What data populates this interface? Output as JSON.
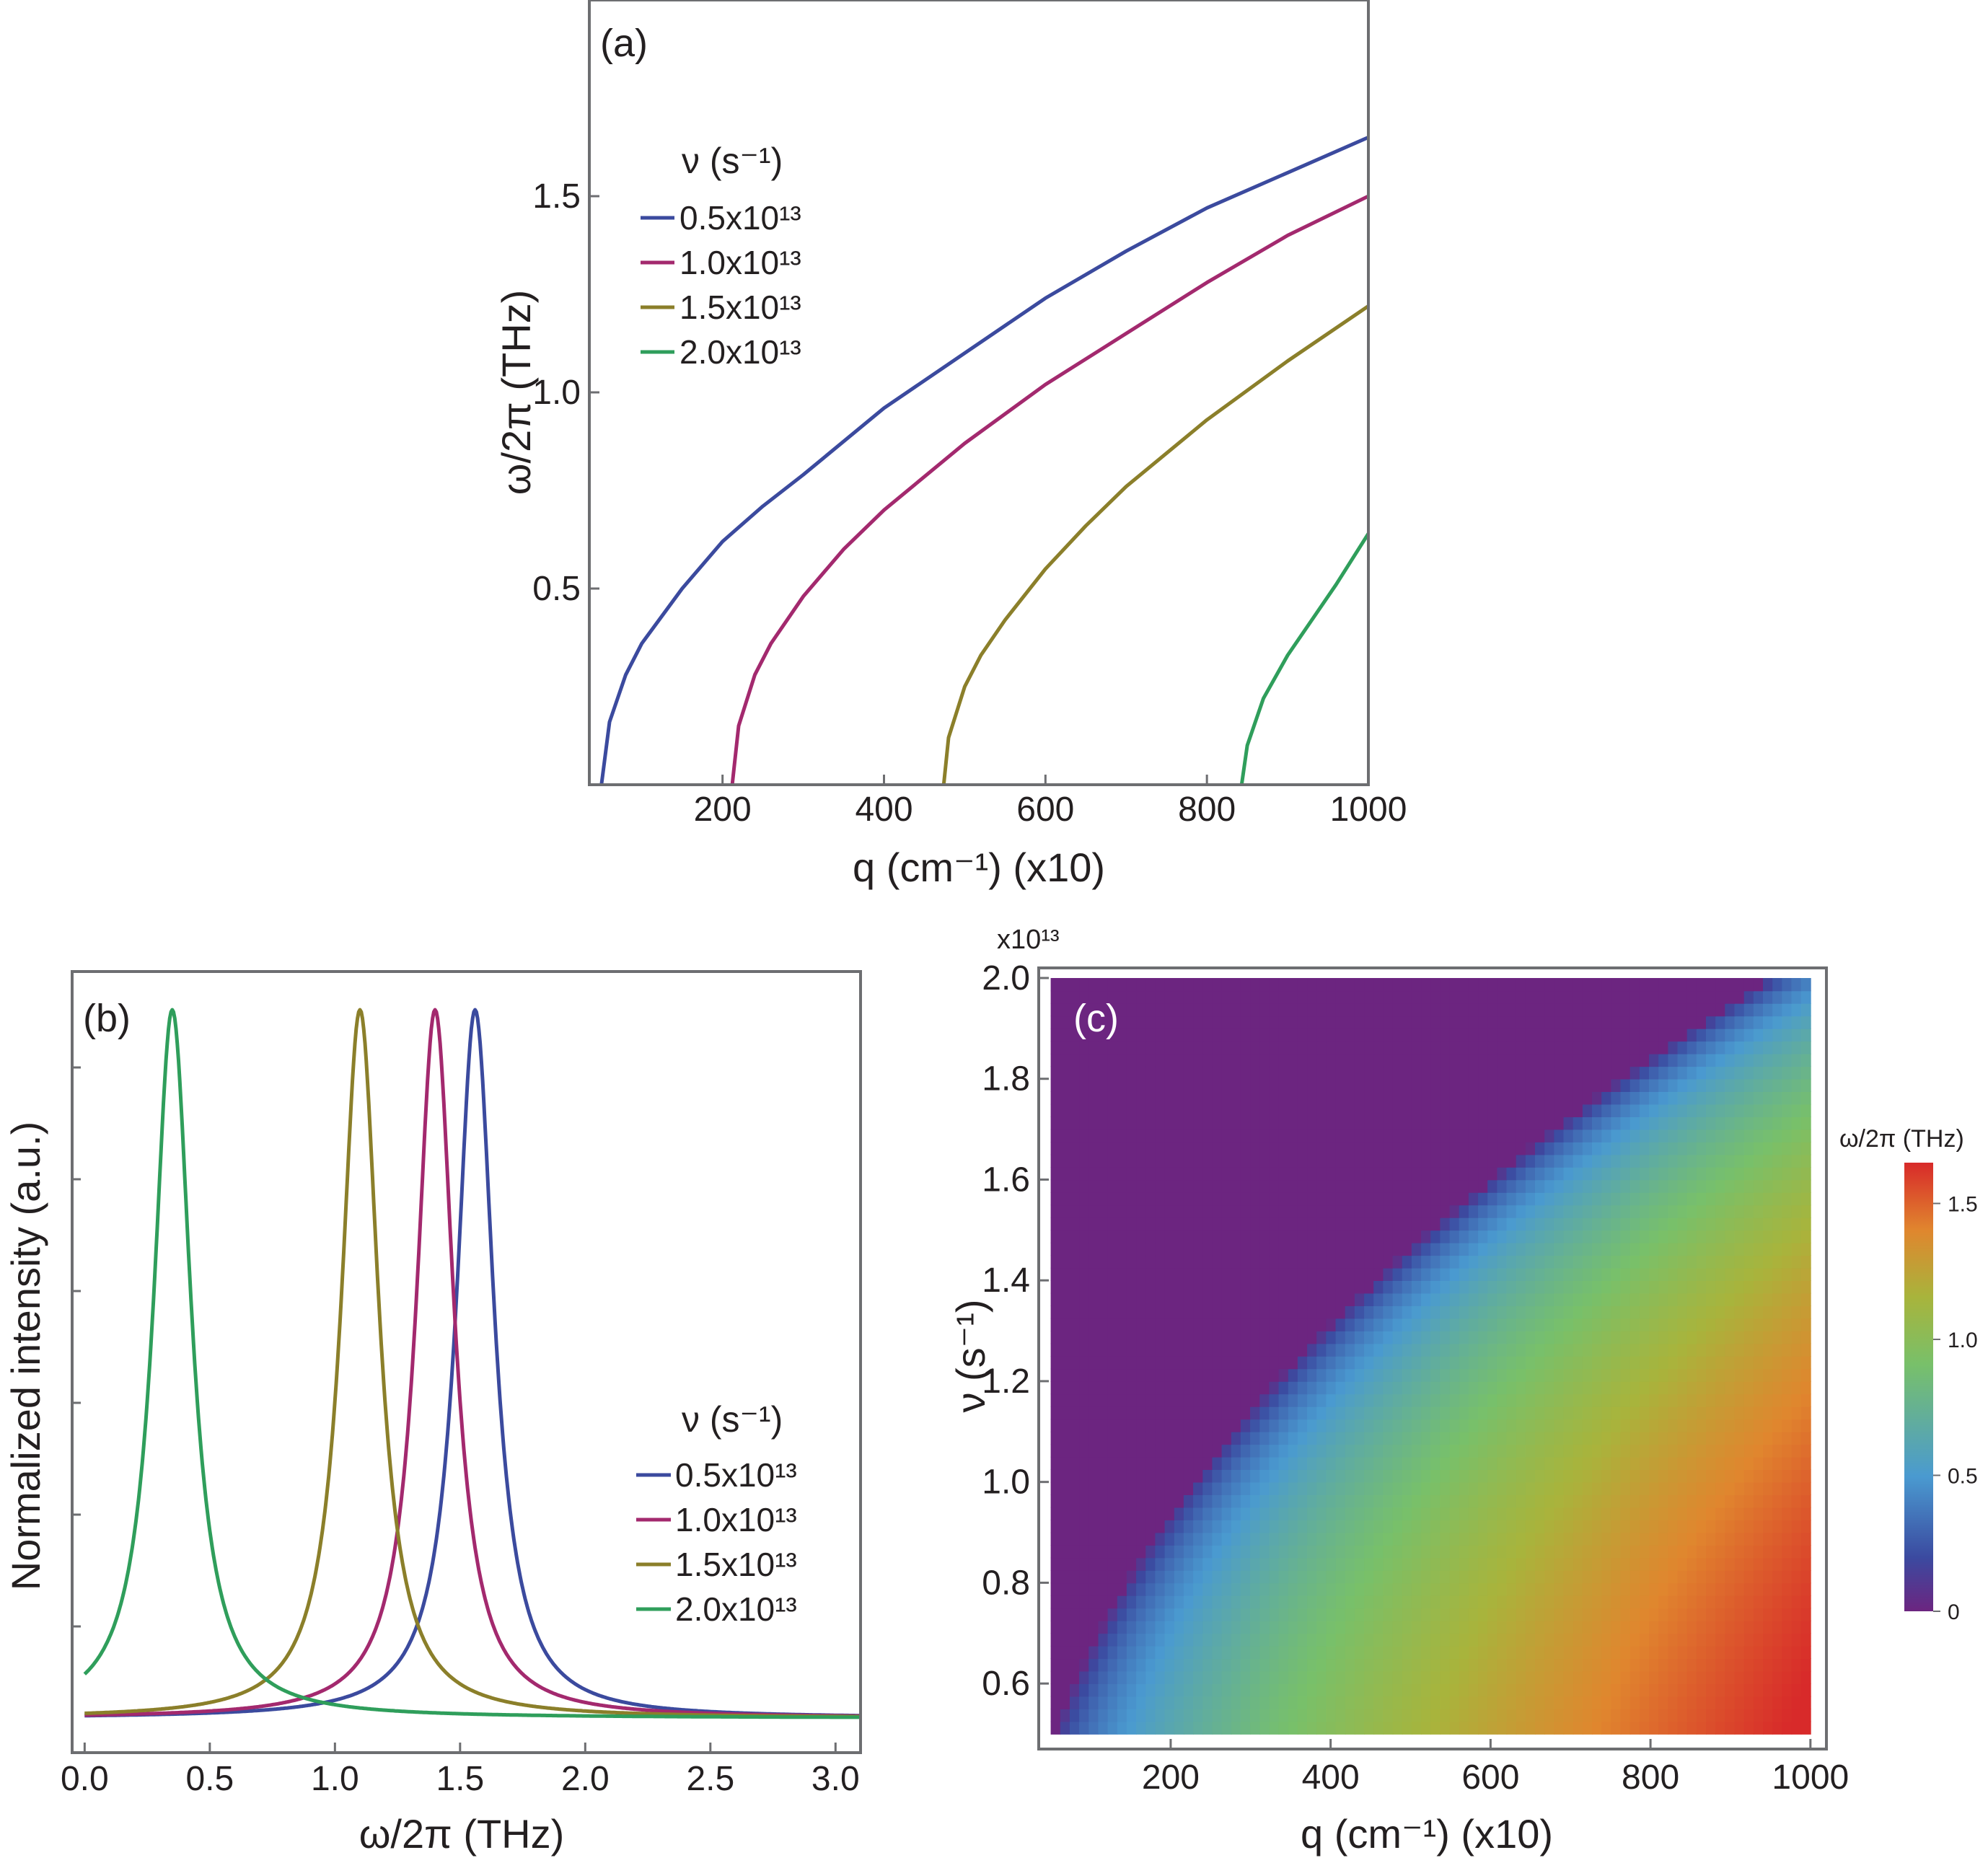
{
  "chart_data": [
    {
      "panel": "(a)",
      "type": "line",
      "xlabel": "q (cm⁻¹) (x10)",
      "ylabel": "ω/2π (THz)",
      "xlim": [
        35,
        1000
      ],
      "ylim": [
        0,
        2.0
      ],
      "xticks": [
        "200",
        "400",
        "600",
        "800",
        "1000"
      ],
      "yticks": [
        "0.5",
        "1.0",
        "1.5"
      ],
      "legend_title": "ν (s⁻¹)",
      "legend_position": "upper-left",
      "series": [
        {
          "name": "0.5x10¹³",
          "color": "#3b4a9e",
          "x": [
            50,
            60,
            80,
            100,
            150,
            200,
            250,
            300,
            400,
            500,
            600,
            700,
            800,
            900,
            1000
          ],
          "y": [
            0.0,
            0.16,
            0.28,
            0.36,
            0.5,
            0.62,
            0.71,
            0.79,
            0.96,
            1.1,
            1.24,
            1.36,
            1.47,
            1.56,
            1.65
          ]
        },
        {
          "name": "1.0x10¹³",
          "color": "#a3296e",
          "x": [
            212,
            220,
            240,
            260,
            300,
            350,
            400,
            500,
            600,
            700,
            800,
            900,
            1000
          ],
          "y": [
            0.0,
            0.15,
            0.28,
            0.36,
            0.48,
            0.6,
            0.7,
            0.87,
            1.02,
            1.15,
            1.28,
            1.4,
            1.5
          ]
        },
        {
          "name": "1.5x10¹³",
          "color": "#8b7f2a",
          "x": [
            474,
            480,
            500,
            520,
            550,
            600,
            650,
            700,
            800,
            900,
            1000
          ],
          "y": [
            0.0,
            0.12,
            0.25,
            0.33,
            0.42,
            0.55,
            0.66,
            0.76,
            0.93,
            1.08,
            1.22
          ]
        },
        {
          "name": "2.0x10¹³",
          "color": "#2f9e5b",
          "x": [
            843,
            850,
            870,
            900,
            930,
            960,
            1000
          ],
          "y": [
            0.0,
            0.1,
            0.22,
            0.33,
            0.42,
            0.51,
            0.64
          ]
        }
      ]
    },
    {
      "panel": "(b)",
      "type": "line",
      "xlabel": "ω/2π (THz)",
      "ylabel": "Normalized intensity (a.u.)",
      "xlim": [
        -0.05,
        3.1
      ],
      "ylim": [
        0,
        1.0
      ],
      "xticks": [
        "0.0",
        "0.5",
        "1.0",
        "1.5",
        "2.0",
        "2.5",
        "3.0"
      ],
      "legend_title": "ν (s⁻¹)",
      "legend_position": "lower-right",
      "series": [
        {
          "name": "0.5x10¹³",
          "color": "#3b4a9e",
          "peak": 1.56,
          "width": 0.09
        },
        {
          "name": "1.0x10¹³",
          "color": "#a3296e",
          "peak": 1.4,
          "width": 0.09
        },
        {
          "name": "1.5x10¹³",
          "color": "#8b7f2a",
          "peak": 1.1,
          "width": 0.09
        },
        {
          "name": "2.0x10¹³",
          "color": "#2f9e5b",
          "peak": 0.35,
          "width": 0.09
        }
      ]
    },
    {
      "panel": "(c)",
      "type": "heatmap",
      "xlabel": "q (cm⁻¹) (x10)",
      "ylabel": "ν (s⁻¹)",
      "y_multiplier": "x10¹³",
      "xlim": [
        35,
        1020
      ],
      "ylim": [
        0.47,
        2.02
      ],
      "xticks": [
        "200",
        "400",
        "600",
        "800",
        "1000"
      ],
      "yticks": [
        "0.6",
        "0.8",
        "1.0",
        "1.2",
        "1.4",
        "1.6",
        "1.8",
        "2.0"
      ],
      "data_extent": {
        "q": [
          50,
          1000
        ],
        "nu": [
          0.5,
          2.0
        ]
      },
      "colorbar": {
        "title": "ω/2π (THz)",
        "range": [
          0,
          1.65
        ],
        "ticks": [
          "0",
          "0.5",
          "1.0",
          "1.5"
        ]
      },
      "background_color": "#6c2580"
    }
  ]
}
